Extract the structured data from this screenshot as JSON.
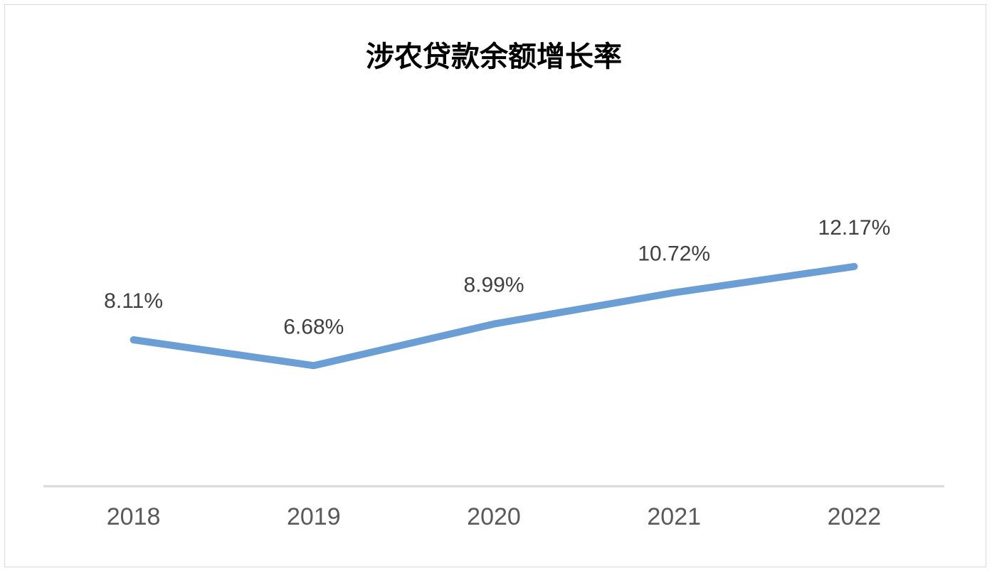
{
  "chart_data": {
    "type": "line",
    "title": "涉农贷款余额增长率",
    "xlabel": "",
    "ylabel": "",
    "categories": [
      "2018",
      "2019",
      "2020",
      "2021",
      "2022"
    ],
    "series": [
      {
        "values": [
          8.11,
          6.68,
          8.99,
          10.72,
          12.17
        ],
        "labels": [
          "8.11%",
          "6.68%",
          "8.99%",
          "10.72%",
          "12.17%"
        ],
        "color": "#6a9ed4"
      }
    ],
    "ylim": [
      0,
      13.5
    ],
    "grid": false,
    "legend": "none",
    "axis_color": "#d9d9d9"
  }
}
